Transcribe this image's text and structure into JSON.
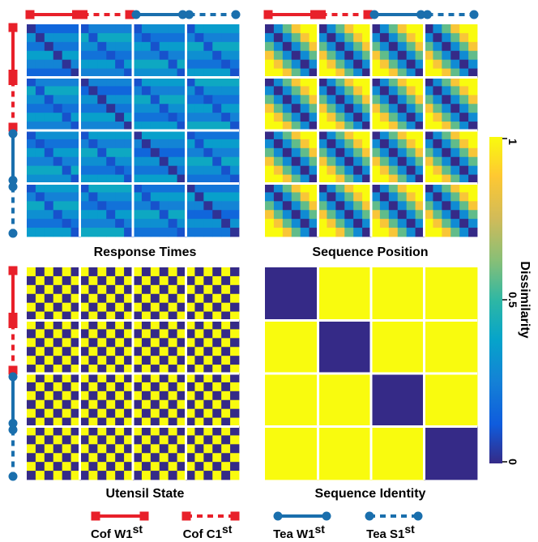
{
  "conditions": [
    {
      "name": "Cof W1",
      "sup": "st",
      "color": "#e8202a",
      "marker": "square",
      "dashed": false
    },
    {
      "name": "Cof C1",
      "sup": "st",
      "color": "#e8202a",
      "marker": "square",
      "dashed": true
    },
    {
      "name": "Tea W1",
      "sup": "st",
      "color": "#1a6fad",
      "marker": "circle",
      "dashed": false
    },
    {
      "name": "Tea S1",
      "sup": "st",
      "color": "#1a6fad",
      "marker": "circle",
      "dashed": true
    }
  ],
  "chart_data": [
    {
      "type": "heatmap",
      "title": "Response Times",
      "blocks": 4,
      "cells_per_block": 6,
      "pattern": "response_times",
      "vmin": 0,
      "vmax": 1
    },
    {
      "type": "heatmap",
      "title": "Sequence Position",
      "blocks": 4,
      "cells_per_block": 6,
      "pattern": "sequence_position",
      "vmin": 0,
      "vmax": 1
    },
    {
      "type": "heatmap",
      "title": "Utensil State",
      "blocks": 4,
      "cells_per_block": 6,
      "pattern": "utensil_state",
      "vmin": 0,
      "vmax": 1
    },
    {
      "type": "heatmap",
      "title": "Sequence Identity",
      "blocks": 4,
      "cells_per_block": 1,
      "pattern": "sequence_identity",
      "vmin": 0,
      "vmax": 1
    }
  ],
  "colorbar": {
    "label": "Dissimilarity",
    "ticks": [
      "0",
      "0.5",
      "1"
    ],
    "colormap": "parula"
  }
}
